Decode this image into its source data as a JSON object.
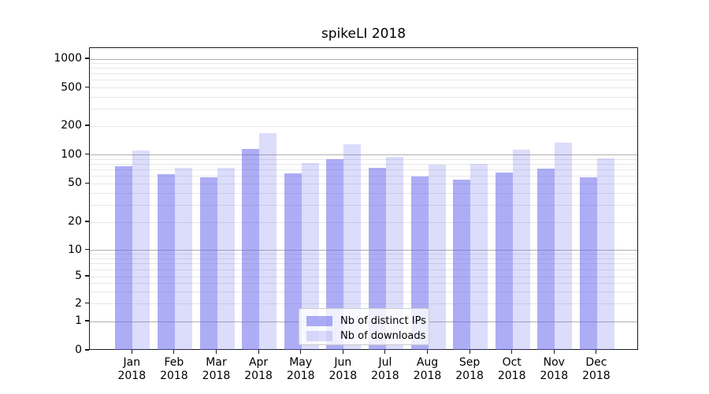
{
  "title": "spikeLI 2018",
  "chart_data": {
    "type": "bar",
    "title": "spikeLI 2018",
    "categories": [
      "Jan",
      "Feb",
      "Mar",
      "Apr",
      "May",
      "Jun",
      "Jul",
      "Aug",
      "Sep",
      "Oct",
      "Nov",
      "Dec"
    ],
    "year": "2018",
    "series": [
      {
        "name": "Nb of distinct IPs",
        "color": "rgba(97,97,238,0.52)",
        "values": [
          76,
          63,
          59,
          115,
          65,
          90,
          73,
          60,
          55,
          66,
          72,
          59
        ]
      },
      {
        "name": "Nb of downloads",
        "color": "rgba(97,97,238,0.22)",
        "values": [
          112,
          74,
          73,
          170,
          82,
          129,
          96,
          80,
          81,
          113,
          135,
          93
        ]
      }
    ],
    "yscale": "symlog",
    "y_ticks": [
      0,
      1,
      2,
      5,
      10,
      20,
      50,
      100,
      200,
      500,
      1000
    ],
    "ylim": [
      0,
      1300
    ],
    "xlabel": "",
    "ylabel": "",
    "grid": true,
    "legend_position": "lower center"
  }
}
